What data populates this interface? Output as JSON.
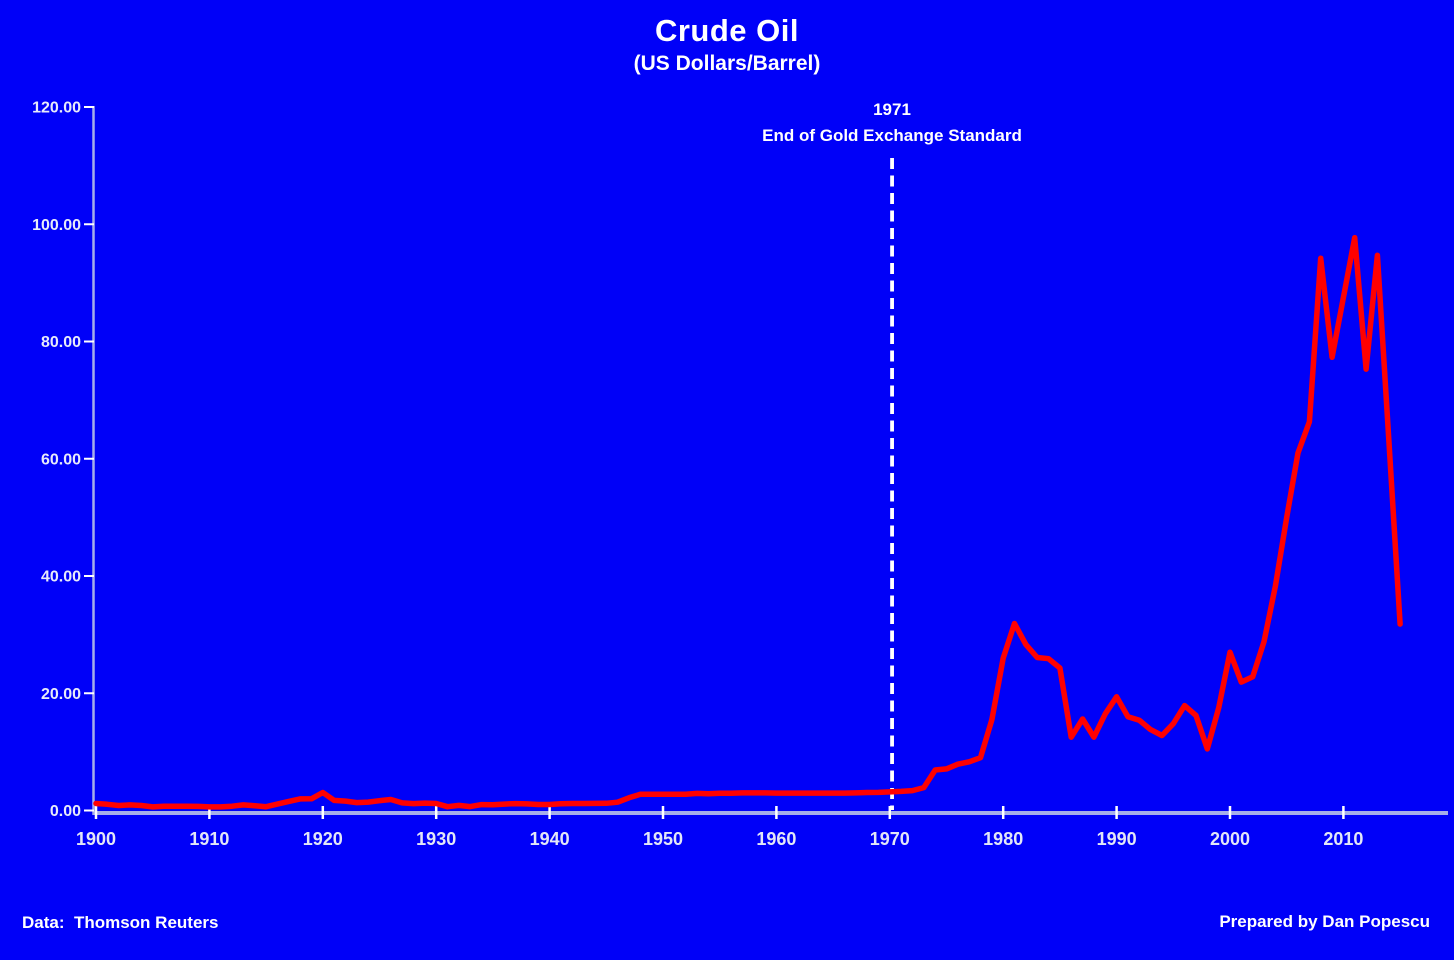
{
  "page": {
    "title": "Crude Oil",
    "subtitle": "(US Dollars/Barrel)"
  },
  "footer": {
    "left": "Data:  Thomson Reuters",
    "right": "Prepared by Dan Popescu"
  },
  "colors": {
    "background": "#0000F8",
    "series": "#FF0000",
    "axis": "#A6AEE9",
    "tick": "#FFFFFF",
    "event_line": "#FFFFFF",
    "text": "#FFFFFF"
  },
  "chart_data": {
    "type": "line",
    "title": "Crude Oil",
    "subtitle": "(US Dollars/Barrel)",
    "xlabel": "",
    "ylabel": "",
    "xlim": [
      1900,
      2017
    ],
    "ylim": [
      0,
      120
    ],
    "grid": false,
    "legend": false,
    "x_tick_years": [
      1900,
      1910,
      1920,
      1930,
      1940,
      1950,
      1960,
      1970,
      1980,
      1990,
      2000,
      2010
    ],
    "x_tick_labels": [
      "1900",
      "1910",
      "1920",
      "1930",
      "1940",
      "1950",
      "1960",
      "1970",
      "1980",
      "1990",
      "2000",
      "2010"
    ],
    "y_ticks": [
      {
        "value": 0,
        "label": "0.00"
      },
      {
        "value": 20,
        "label": "20.00"
      },
      {
        "value": 40,
        "label": "40.00"
      },
      {
        "value": 60,
        "label": "60.00"
      },
      {
        "value": 80,
        "label": "80.00"
      },
      {
        "value": 100,
        "label": "100.00"
      },
      {
        "value": 120,
        "label": "120.00"
      }
    ],
    "event_line": {
      "year": 1970.2,
      "label_line1": "1971",
      "label_line2": "End of Gold Exchange Standard",
      "style": "dashed-white"
    },
    "series": [
      {
        "name": "Crude Oil (US Dollars/Barrel)",
        "color": "#FF0000",
        "years": [
          1900,
          1901,
          1902,
          1903,
          1904,
          1905,
          1906,
          1907,
          1908,
          1909,
          1910,
          1911,
          1912,
          1913,
          1914,
          1915,
          1916,
          1917,
          1918,
          1919,
          1920,
          1921,
          1922,
          1923,
          1924,
          1925,
          1926,
          1927,
          1928,
          1929,
          1930,
          1931,
          1932,
          1933,
          1934,
          1935,
          1936,
          1937,
          1938,
          1939,
          1940,
          1941,
          1942,
          1943,
          1944,
          1945,
          1946,
          1947,
          1948,
          1949,
          1950,
          1951,
          1952,
          1953,
          1954,
          1955,
          1956,
          1957,
          1958,
          1959,
          1960,
          1961,
          1962,
          1963,
          1964,
          1965,
          1966,
          1967,
          1968,
          1969,
          1970,
          1971,
          1972,
          1973,
          1974,
          1975,
          1976,
          1977,
          1978,
          1979,
          1980,
          1981,
          1982,
          1983,
          1984,
          1985,
          1986,
          1987,
          1988,
          1989,
          1990,
          1991,
          1992,
          1993,
          1994,
          1995,
          1996,
          1997,
          1998,
          1999,
          2000,
          2001,
          2002,
          2003,
          2004,
          2005,
          2006,
          2007,
          2008,
          2009,
          2010,
          2011,
          2012,
          2013,
          2014,
          2015
        ],
        "values": [
          1.2,
          1.05,
          0.85,
          0.95,
          0.85,
          0.62,
          0.73,
          0.72,
          0.72,
          0.7,
          0.61,
          0.61,
          0.74,
          0.95,
          0.81,
          0.64,
          1.1,
          1.56,
          1.98,
          2.0,
          3.07,
          1.73,
          1.61,
          1.34,
          1.43,
          1.68,
          1.88,
          1.3,
          1.17,
          1.27,
          1.19,
          0.65,
          0.87,
          0.67,
          1.0,
          0.97,
          1.09,
          1.18,
          1.13,
          1.02,
          1.02,
          1.14,
          1.19,
          1.2,
          1.21,
          1.22,
          1.41,
          2.16,
          2.77,
          2.77,
          2.77,
          2.77,
          2.77,
          2.92,
          2.85,
          2.93,
          2.94,
          3.0,
          3.0,
          3.0,
          2.97,
          2.97,
          2.97,
          2.97,
          2.97,
          2.97,
          2.97,
          3.0,
          3.07,
          3.09,
          3.18,
          3.25,
          3.4,
          3.9,
          6.9,
          7.1,
          7.9,
          8.3,
          9.0,
          15.5,
          26.0,
          31.9,
          28.3,
          26.1,
          25.9,
          24.3,
          12.5,
          15.6,
          12.5,
          16.5,
          19.4,
          16.0,
          15.4,
          13.8,
          12.8,
          14.8,
          17.9,
          16.2,
          10.5,
          17.5,
          27.0,
          21.9,
          22.8,
          28.8,
          38.3,
          50.0,
          61.0,
          66.3,
          94.2,
          77.3,
          87.5,
          97.7,
          75.3,
          94.7,
          63.3,
          31.8
        ]
      }
    ]
  }
}
